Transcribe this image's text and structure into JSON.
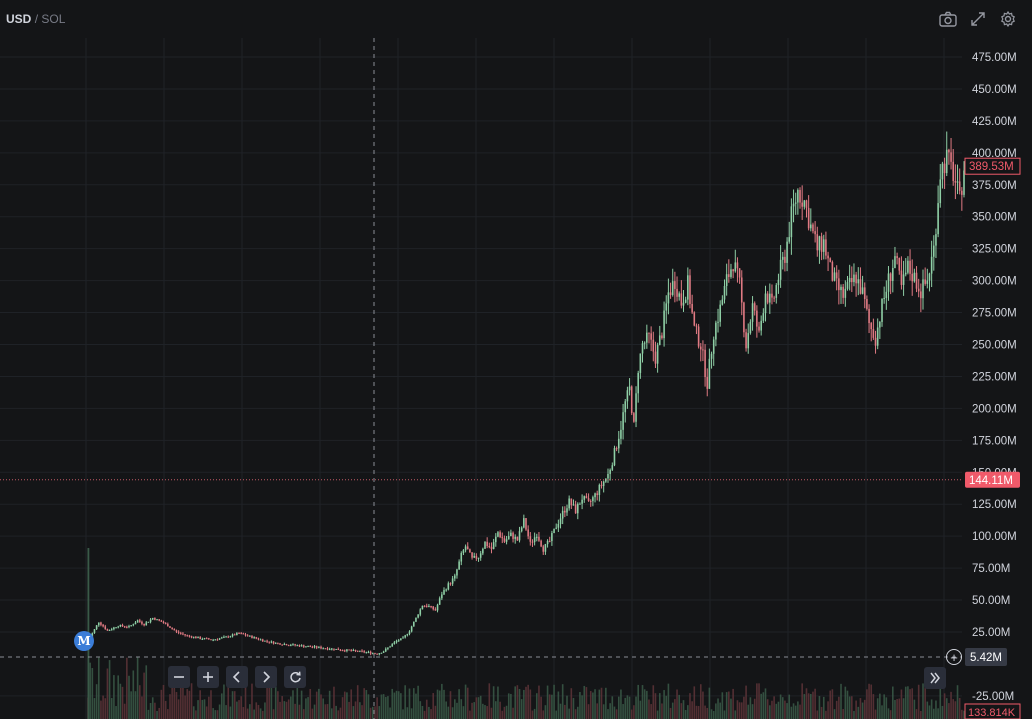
{
  "symbol": {
    "base": "USD",
    "separator": "/",
    "quote": "SOL"
  },
  "icons": {
    "camera": "camera-icon",
    "fullscreen": "fullscreen-icon",
    "settings": "gear-icon"
  },
  "marker": {
    "label": "M"
  },
  "nav": {
    "zoom_out": "−",
    "zoom_in": "+",
    "back": "‹",
    "forward": "›",
    "reset": "↻",
    "scroll_end": "»"
  },
  "colors": {
    "background": "#141517",
    "grid": "#1f2227",
    "up": "#8fcfa6",
    "down": "#e07a83",
    "axis_text": "#d1d4dc",
    "last_price_label": "#f05a6a",
    "crosshair": "#8a8d96"
  },
  "chart_data": {
    "type": "candlestick",
    "title": "",
    "xlabel": "",
    "ylabel": "",
    "ylim": [
      -35000000,
      485000000
    ],
    "y_tick_labels": [
      "475.00M",
      "450.00M",
      "425.00M",
      "400.00M",
      "375.00M",
      "350.00M",
      "325.00M",
      "300.00M",
      "275.00M",
      "250.00M",
      "225.00M",
      "200.00M",
      "175.00M",
      "150.00M",
      "125.00M",
      "100.00M",
      "75.00M",
      "50.00M",
      "25.00M",
      "-25.00M"
    ],
    "y_ticks": [
      475000000,
      450000000,
      425000000,
      400000000,
      375000000,
      350000000,
      325000000,
      300000000,
      275000000,
      250000000,
      225000000,
      200000000,
      175000000,
      150000000,
      125000000,
      100000000,
      75000000,
      50000000,
      25000000,
      -25000000
    ],
    "grid": true,
    "last_price": {
      "label": "389.53M",
      "value": 389530000
    },
    "horizontal_line": {
      "label": "144.11M",
      "value": 144110000
    },
    "crosshair": {
      "price_label": "5.42M",
      "value": 5420000
    },
    "volume_label": "133.814K",
    "price_series": [
      [
        0,
        18000000
      ],
      [
        2,
        24000000
      ],
      [
        5,
        33000000
      ],
      [
        9,
        26000000
      ],
      [
        14,
        30000000
      ],
      [
        19,
        29000000
      ],
      [
        23,
        34000000
      ],
      [
        26,
        31000000
      ],
      [
        30,
        36000000
      ],
      [
        34,
        33000000
      ],
      [
        37,
        30000000
      ],
      [
        41,
        25000000
      ],
      [
        46,
        22000000
      ],
      [
        52,
        20000000
      ],
      [
        58,
        19000000
      ],
      [
        64,
        21000000
      ],
      [
        70,
        24000000
      ],
      [
        76,
        21000000
      ],
      [
        82,
        18000000
      ],
      [
        88,
        16000000
      ],
      [
        94,
        15000000
      ],
      [
        100,
        14000000
      ],
      [
        106,
        13000000
      ],
      [
        112,
        12000000
      ],
      [
        118,
        11000000
      ],
      [
        124,
        10000000
      ],
      [
        130,
        9000000
      ],
      [
        134,
        8000000
      ],
      [
        137,
        10000000
      ],
      [
        140,
        14000000
      ],
      [
        143,
        18000000
      ],
      [
        146,
        20000000
      ],
      [
        149,
        26000000
      ],
      [
        152,
        36000000
      ],
      [
        155,
        46000000
      ],
      [
        158,
        45000000
      ],
      [
        161,
        42000000
      ],
      [
        164,
        55000000
      ],
      [
        167,
        62000000
      ],
      [
        170,
        68000000
      ],
      [
        173,
        85000000
      ],
      [
        175,
        92000000
      ],
      [
        178,
        82000000
      ],
      [
        181,
        84000000
      ],
      [
        184,
        95000000
      ],
      [
        187,
        90000000
      ],
      [
        190,
        103000000
      ],
      [
        193,
        96000000
      ],
      [
        196,
        101000000
      ],
      [
        199,
        97000000
      ],
      [
        202,
        112000000
      ],
      [
        205,
        94000000
      ],
      [
        208,
        102000000
      ],
      [
        211,
        90000000
      ],
      [
        214,
        96000000
      ],
      [
        217,
        108000000
      ],
      [
        220,
        118000000
      ],
      [
        223,
        127000000
      ],
      [
        226,
        120000000
      ],
      [
        229,
        130000000
      ],
      [
        232,
        125000000
      ],
      [
        235,
        132000000
      ],
      [
        238,
        140000000
      ],
      [
        241,
        148000000
      ],
      [
        244,
        165000000
      ],
      [
        247,
        186000000
      ],
      [
        249,
        204000000
      ],
      [
        251,
        215000000
      ],
      [
        253,
        186000000
      ],
      [
        255,
        232000000
      ],
      [
        257,
        250000000
      ],
      [
        260,
        255000000
      ],
      [
        263,
        240000000
      ],
      [
        266,
        260000000
      ],
      [
        269,
        290000000
      ],
      [
        272,
        300000000
      ],
      [
        275,
        283000000
      ],
      [
        278,
        297000000
      ],
      [
        281,
        262000000
      ],
      [
        284,
        250000000
      ],
      [
        287,
        220000000
      ],
      [
        290,
        260000000
      ],
      [
        293,
        278000000
      ],
      [
        296,
        300000000
      ],
      [
        299,
        315000000
      ],
      [
        302,
        296000000
      ],
      [
        305,
        250000000
      ],
      [
        308,
        280000000
      ],
      [
        311,
        257000000
      ],
      [
        314,
        292000000
      ],
      [
        317,
        280000000
      ],
      [
        320,
        303000000
      ],
      [
        323,
        320000000
      ],
      [
        326,
        350000000
      ],
      [
        329,
        370000000
      ],
      [
        332,
        362000000
      ],
      [
        335,
        342000000
      ],
      [
        338,
        325000000
      ],
      [
        341,
        330000000
      ],
      [
        344,
        308000000
      ],
      [
        347,
        295000000
      ],
      [
        350,
        288000000
      ],
      [
        353,
        296000000
      ],
      [
        356,
        303000000
      ],
      [
        359,
        290000000
      ],
      [
        362,
        266000000
      ],
      [
        365,
        255000000
      ],
      [
        368,
        280000000
      ],
      [
        371,
        300000000
      ],
      [
        374,
        318000000
      ],
      [
        377,
        294000000
      ],
      [
        380,
        310000000
      ],
      [
        383,
        302000000
      ],
      [
        386,
        292000000
      ],
      [
        389,
        300000000
      ],
      [
        392,
        325000000
      ],
      [
        395,
        385000000
      ],
      [
        398,
        396000000
      ],
      [
        401,
        384000000
      ],
      [
        404,
        362000000
      ],
      [
        406,
        389530000
      ]
    ]
  }
}
